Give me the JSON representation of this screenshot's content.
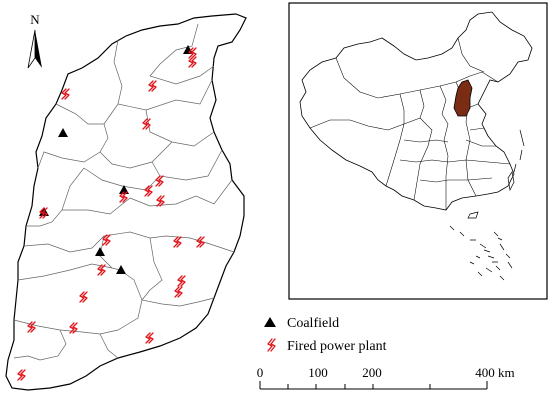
{
  "north_arrow": {
    "label": "N"
  },
  "legend": {
    "items": [
      {
        "symbol": "coalfield",
        "label": "Coalfield",
        "color": "#000000"
      },
      {
        "symbol": "fired-power-plant",
        "label": "Fired power plant",
        "color": "#e0151b"
      }
    ]
  },
  "scale_bar": {
    "ticks": [
      "0",
      "100",
      "200",
      "400"
    ],
    "unit": "km"
  },
  "inset": {
    "highlight_color": "#7a2d14"
  },
  "counts": {
    "coalfields": 6,
    "fired_power_plants": 21
  }
}
